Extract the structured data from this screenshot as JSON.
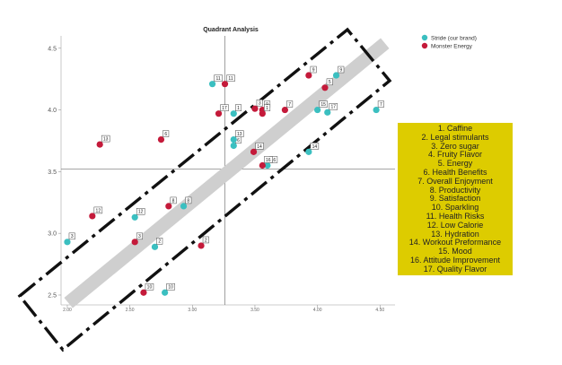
{
  "chart_data": {
    "type": "scatter",
    "title": "Quadrant Analysis",
    "xlabel": "",
    "ylabel": "",
    "xlim": [
      1.95,
      4.62
    ],
    "ylim": [
      2.42,
      4.6
    ],
    "xticks": [
      "2.00",
      "2.50",
      "3.00",
      "3.50",
      "4.00",
      "4.50"
    ],
    "yticks": [
      "2.5",
      "3.0",
      "3.5",
      "4.0",
      "4.5"
    ],
    "reference_lines": {
      "x": 3.26,
      "y": 3.52
    },
    "legend_position": "top-right",
    "series": [
      {
        "name": "Stride (our brand)",
        "color": "#3bbfc0",
        "points": [
          {
            "x": 3.16,
            "y": 4.21,
            "label": "11"
          },
          {
            "x": 3.33,
            "y": 3.97,
            "label": "1"
          },
          {
            "x": 3.33,
            "y": 3.71,
            "label": "6"
          },
          {
            "x": 3.33,
            "y": 3.76,
            "label": "13"
          },
          {
            "x": 3.6,
            "y": 3.55,
            "label": "16"
          },
          {
            "x": 3.93,
            "y": 3.66,
            "label": "14"
          },
          {
            "x": 4.0,
            "y": 4.0,
            "label": "15"
          },
          {
            "x": 4.08,
            "y": 3.98,
            "label": "17"
          },
          {
            "x": 4.15,
            "y": 4.28,
            "label": "9"
          },
          {
            "x": 4.47,
            "y": 4.0,
            "label": "7"
          },
          {
            "x": 2.0,
            "y": 2.93,
            "label": "3"
          },
          {
            "x": 2.54,
            "y": 3.13,
            "label": "12"
          },
          {
            "x": 2.7,
            "y": 2.89,
            "label": "2"
          },
          {
            "x": 2.93,
            "y": 3.22,
            "label": "8"
          },
          {
            "x": 2.78,
            "y": 2.52,
            "label": "10"
          }
        ]
      },
      {
        "name": "Monster Energy",
        "color": "#c41a3a",
        "points": [
          {
            "x": 2.26,
            "y": 3.72,
            "label": "13"
          },
          {
            "x": 2.75,
            "y": 3.76,
            "label": "6"
          },
          {
            "x": 3.21,
            "y": 3.97,
            "label": "17"
          },
          {
            "x": 3.26,
            "y": 4.21,
            "label": "11"
          },
          {
            "x": 3.5,
            "y": 4.01,
            "label": "3"
          },
          {
            "x": 3.56,
            "y": 4.0,
            "label": "9"
          },
          {
            "x": 3.56,
            "y": 3.97,
            "label": "1"
          },
          {
            "x": 3.56,
            "y": 3.55,
            "label": "16"
          },
          {
            "x": 3.49,
            "y": 3.66,
            "label": "14"
          },
          {
            "x": 3.74,
            "y": 4.0,
            "label": "7"
          },
          {
            "x": 3.93,
            "y": 4.28,
            "label": "9"
          },
          {
            "x": 4.06,
            "y": 4.18,
            "label": "5"
          },
          {
            "x": 2.2,
            "y": 3.14,
            "label": "12"
          },
          {
            "x": 2.54,
            "y": 2.93,
            "label": "3"
          },
          {
            "x": 2.81,
            "y": 3.22,
            "label": "8"
          },
          {
            "x": 3.07,
            "y": 2.9,
            "label": "2"
          },
          {
            "x": 2.61,
            "y": 2.52,
            "label": "10"
          }
        ]
      }
    ],
    "key": {
      "color": "#ddcc00",
      "items": [
        "1. Caffine",
        "2. Legal stimulants",
        "3. Zero sugar",
        "4. Fruity Flavor",
        "5. Energy",
        "6. Health Benefits",
        "7. Overall Enjoyment",
        "8. Productivity",
        "9. Satisfaction",
        "10. Sparkling",
        "11. Health Risks",
        "12. Low Calorie",
        "13. Hydration",
        "14. Workout Preformance",
        "15. Mood",
        "16. Attitude Improvement",
        "17. Quality Flavor"
      ]
    }
  }
}
